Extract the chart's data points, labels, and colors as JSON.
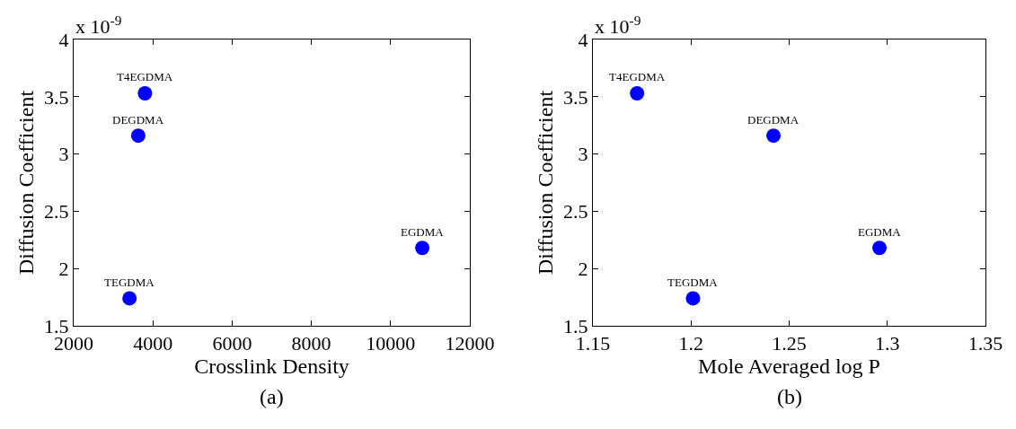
{
  "chart_data": [
    {
      "type": "scatter",
      "x": [
        3800,
        3630,
        10800,
        3410
      ],
      "values": [
        3.53,
        3.16,
        2.18,
        1.74
      ],
      "color": "#0000ff",
      "marker": "circle",
      "grid": false,
      "xlabel": "Crosslink Density",
      "ylabel": "Diffusion Coefficient",
      "xlim": [
        2000,
        12000
      ],
      "xticks": [
        2000,
        4000,
        6000,
        8000,
        10000,
        12000
      ],
      "ylim": [
        1.5,
        4
      ],
      "yticks": [
        1.5,
        2,
        2.5,
        3,
        3.5,
        4
      ],
      "annotations": [
        {
          "text": "T4EGDMA",
          "x": 3800,
          "y": 3.53
        },
        {
          "text": "DEGDMA",
          "x": 3630,
          "y": 3.16
        },
        {
          "text": "EGDMA",
          "x": 10800,
          "y": 2.18
        },
        {
          "text": "TEGDMA",
          "x": 3410,
          "y": 1.74
        },
        "x 10$^{-9}$",
        "(a)"
      ]
    },
    {
      "type": "scatter",
      "x": [
        1.1725,
        1.242,
        1.296,
        1.201
      ],
      "values": [
        3.53,
        3.16,
        2.18,
        1.74
      ],
      "color": "#0000ff",
      "marker": "circle",
      "grid": false,
      "xlabel": "Mole Averaged log P",
      "ylabel": "Diffusion Coefficient",
      "xlim": [
        1.15,
        1.35
      ],
      "xticks": [
        1.15,
        1.2,
        1.25,
        1.3,
        1.35
      ],
      "ylim": [
        1.5,
        4
      ],
      "yticks": [
        1.5,
        2,
        2.5,
        3,
        3.5,
        4
      ],
      "annotations": [
        {
          "text": "T4EGDMA",
          "x": 1.1725,
          "y": 3.53
        },
        {
          "text": "DEGDMA",
          "x": 1.242,
          "y": 3.16
        },
        {
          "text": "EGDMA",
          "x": 1.296,
          "y": 2.18
        },
        {
          "text": "TEGDMA",
          "x": 1.201,
          "y": 1.74
        },
        "x 10$^{-9}$",
        "(b)"
      ]
    }
  ]
}
